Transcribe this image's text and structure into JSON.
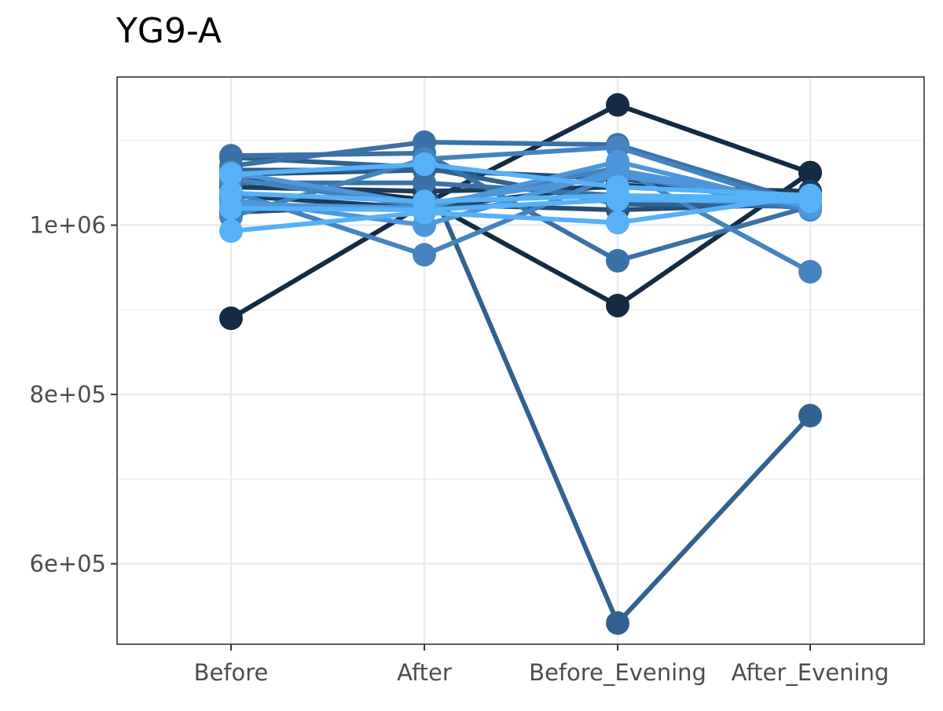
{
  "chart_data": {
    "type": "line",
    "title": "YG9-A",
    "xlabel": "",
    "ylabel": "",
    "categories": [
      "Before",
      "After",
      "Before_Evening",
      "After_Evening"
    ],
    "y_ticks": [
      600000,
      800000,
      1000000
    ],
    "y_tick_labels": [
      "6e+05",
      "8e+05",
      "1e+06"
    ],
    "ylim": [
      505000,
      1175000
    ],
    "grid": true,
    "legend": "none",
    "colors": [
      "#132b43",
      "#1d3d5c",
      "#274f75",
      "#31618e",
      "#3a71a6",
      "#4483bf",
      "#4e96d9",
      "#56b1f7"
    ],
    "series": [
      {
        "values": [
          890000,
          1025000,
          1142000,
          1062000
        ],
        "color": "#132b43"
      },
      {
        "values": [
          1055000,
          1030000,
          905000,
          1062000
        ],
        "color": "#132b43"
      },
      {
        "values": [
          1045000,
          1040000,
          1045000,
          1040000
        ],
        "color": "#1d3d5c"
      },
      {
        "values": [
          1035000,
          1020000,
          1048000,
          1032000
        ],
        "color": "#1d3d5c"
      },
      {
        "values": [
          1015000,
          1025000,
          1018000,
          1025000
        ],
        "color": "#274f75"
      },
      {
        "values": [
          1060000,
          1065000,
          1055000,
          1028000
        ],
        "color": "#274f75"
      },
      {
        "values": [
          1080000,
          1068000,
          1025000,
          1022000
        ],
        "color": "#31618e"
      },
      {
        "values": [
          1065000,
          1065000,
          530000,
          775000
        ],
        "color": "#31618e"
      },
      {
        "values": [
          1050000,
          1050000,
          1035000,
          1020000
        ],
        "color": "#3a71a6"
      },
      {
        "values": [
          1070000,
          1098000,
          1095000,
          1025000
        ],
        "color": "#3a71a6"
      },
      {
        "values": [
          1082000,
          1085000,
          958000,
          1022000
        ],
        "color": "#3a71a6"
      },
      {
        "values": [
          1040000,
          965000,
          1060000,
          1018000
        ],
        "color": "#4483bf"
      },
      {
        "values": [
          1010000,
          1078000,
          1092000,
          1020000
        ],
        "color": "#4483bf"
      },
      {
        "values": [
          1055000,
          1022000,
          1068000,
          945000
        ],
        "color": "#4483bf"
      },
      {
        "values": [
          1025000,
          1020000,
          1075000,
          1020000
        ],
        "color": "#4e96d9"
      },
      {
        "values": [
          1062000,
          1025000,
          1058000,
          1030000
        ],
        "color": "#4e96d9"
      },
      {
        "values": [
          1030000,
          1000000,
          1065000,
          1025000
        ],
        "color": "#4e96d9"
      },
      {
        "values": [
          993000,
          1015000,
          1003000,
          1035000
        ],
        "color": "#56b1f7"
      },
      {
        "values": [
          1060000,
          1072000,
          1045000,
          1035000
        ],
        "color": "#56b1f7"
      },
      {
        "values": [
          1038000,
          1028000,
          1035000,
          1032000
        ],
        "color": "#56b1f7"
      },
      {
        "values": [
          1020000,
          1018000,
          1030000,
          1028000
        ],
        "color": "#56b1f7"
      }
    ]
  }
}
